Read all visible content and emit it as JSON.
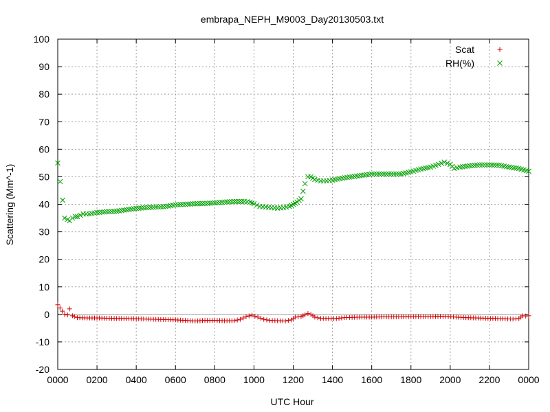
{
  "chart_data": {
    "type": "scatter",
    "title": "embrapa_NEPH_M9003_Day20130503.txt",
    "xlabel": "UTC Hour",
    "ylabel": "Scattering (Mm^-1)",
    "xlim": [
      0,
      24
    ],
    "ylim": [
      -20,
      100
    ],
    "x_ticks": [
      0,
      2,
      4,
      6,
      8,
      10,
      12,
      14,
      16,
      18,
      20,
      22,
      24
    ],
    "x_tick_labels": [
      "0000",
      "0200",
      "0400",
      "0600",
      "0800",
      "1000",
      "1200",
      "1400",
      "1600",
      "1800",
      "2000",
      "2200",
      "0000"
    ],
    "y_ticks": [
      -20,
      -10,
      0,
      10,
      20,
      30,
      40,
      50,
      60,
      70,
      80,
      90,
      100
    ],
    "grid": true,
    "legend_position": "top-right",
    "series": [
      {
        "name": "Scat",
        "marker": "plus",
        "color": "#cc0000",
        "points": [
          [
            0.0,
            3.5
          ],
          [
            0.35,
            0.0
          ],
          [
            0.5,
            -0.2
          ],
          [
            0.6,
            2.0
          ],
          [
            0.75,
            -0.5
          ],
          [
            0.85,
            -0.8
          ],
          [
            1.0,
            -1.2
          ],
          [
            1.5,
            -1.3
          ],
          [
            2.0,
            -1.3
          ],
          [
            2.5,
            -1.4
          ],
          [
            3.0,
            -1.5
          ],
          [
            3.5,
            -1.5
          ],
          [
            4.0,
            -1.6
          ],
          [
            4.5,
            -1.7
          ],
          [
            5.0,
            -1.8
          ],
          [
            5.5,
            -1.9
          ],
          [
            6.0,
            -2.0
          ],
          [
            6.5,
            -2.2
          ],
          [
            7.0,
            -2.4
          ],
          [
            7.5,
            -2.2
          ],
          [
            8.0,
            -2.2
          ],
          [
            8.5,
            -2.3
          ],
          [
            9.0,
            -2.3
          ],
          [
            9.3,
            -1.8
          ],
          [
            9.6,
            -0.8
          ],
          [
            9.9,
            -0.3
          ],
          [
            10.2,
            -1.0
          ],
          [
            10.5,
            -1.8
          ],
          [
            10.8,
            -2.2
          ],
          [
            11.2,
            -2.3
          ],
          [
            11.6,
            -2.4
          ],
          [
            11.9,
            -2.0
          ],
          [
            12.1,
            -1.0
          ],
          [
            12.4,
            -0.8
          ],
          [
            12.6,
            -0.2
          ],
          [
            12.75,
            0.3
          ],
          [
            12.9,
            0.0
          ],
          [
            13.1,
            -1.0
          ],
          [
            13.4,
            -1.5
          ],
          [
            13.8,
            -1.5
          ],
          [
            14.2,
            -1.5
          ],
          [
            14.6,
            -1.2
          ],
          [
            15.0,
            -1.1
          ],
          [
            15.5,
            -1.0
          ],
          [
            16.0,
            -1.0
          ],
          [
            16.5,
            -0.9
          ],
          [
            17.0,
            -0.9
          ],
          [
            17.5,
            -0.9
          ],
          [
            18.0,
            -0.8
          ],
          [
            18.5,
            -0.8
          ],
          [
            19.0,
            -0.8
          ],
          [
            19.5,
            -0.7
          ],
          [
            19.9,
            -0.8
          ],
          [
            20.3,
            -1.0
          ],
          [
            20.8,
            -1.2
          ],
          [
            21.3,
            -1.3
          ],
          [
            21.8,
            -1.4
          ],
          [
            22.3,
            -1.5
          ],
          [
            22.8,
            -1.6
          ],
          [
            23.2,
            -1.7
          ],
          [
            23.5,
            -1.5
          ],
          [
            23.7,
            -0.5
          ],
          [
            23.85,
            -0.6
          ],
          [
            24.0,
            -0.5
          ]
        ]
      },
      {
        "name": "RH(%)",
        "marker": "cross",
        "color": "#00a000",
        "points": [
          [
            0.0,
            55.0
          ],
          [
            0.25,
            41.5
          ],
          [
            0.35,
            35.0
          ],
          [
            0.5,
            34.5
          ],
          [
            0.6,
            34.0
          ],
          [
            0.75,
            35.0
          ],
          [
            0.9,
            35.5
          ],
          [
            1.0,
            35.5
          ],
          [
            1.3,
            36.5
          ],
          [
            1.6,
            36.5
          ],
          [
            2.0,
            37.0
          ],
          [
            2.5,
            37.3
          ],
          [
            3.0,
            37.5
          ],
          [
            3.5,
            38.0
          ],
          [
            4.0,
            38.5
          ],
          [
            4.5,
            38.8
          ],
          [
            5.0,
            39.0
          ],
          [
            5.5,
            39.2
          ],
          [
            6.0,
            39.8
          ],
          [
            6.5,
            40.0
          ],
          [
            7.0,
            40.2
          ],
          [
            7.5,
            40.3
          ],
          [
            8.0,
            40.5
          ],
          [
            8.5,
            40.8
          ],
          [
            9.0,
            41.0
          ],
          [
            9.5,
            41.0
          ],
          [
            9.8,
            40.8
          ],
          [
            10.0,
            40.2
          ],
          [
            10.3,
            39.2
          ],
          [
            10.6,
            39.0
          ],
          [
            10.9,
            38.8
          ],
          [
            11.2,
            38.6
          ],
          [
            11.5,
            38.8
          ],
          [
            11.8,
            39.2
          ],
          [
            12.0,
            40.0
          ],
          [
            12.2,
            40.8
          ],
          [
            12.4,
            42.0
          ],
          [
            12.6,
            47.5
          ],
          [
            12.75,
            50.0
          ],
          [
            12.9,
            50.0
          ],
          [
            13.1,
            49.0
          ],
          [
            13.4,
            48.5
          ],
          [
            13.7,
            48.5
          ],
          [
            14.0,
            48.8
          ],
          [
            14.5,
            49.5
          ],
          [
            15.0,
            50.0
          ],
          [
            15.5,
            50.5
          ],
          [
            16.0,
            51.0
          ],
          [
            16.5,
            51.0
          ],
          [
            17.0,
            51.0
          ],
          [
            17.5,
            51.0
          ],
          [
            18.0,
            51.8
          ],
          [
            18.5,
            52.8
          ],
          [
            19.0,
            53.5
          ],
          [
            19.4,
            54.5
          ],
          [
            19.7,
            55.3
          ],
          [
            20.0,
            54.5
          ],
          [
            20.2,
            53.0
          ],
          [
            20.5,
            53.5
          ],
          [
            21.0,
            54.0
          ],
          [
            21.5,
            54.3
          ],
          [
            22.0,
            54.3
          ],
          [
            22.5,
            54.2
          ],
          [
            23.0,
            53.5
          ],
          [
            23.5,
            53.0
          ],
          [
            24.0,
            52.0
          ]
        ]
      }
    ]
  }
}
